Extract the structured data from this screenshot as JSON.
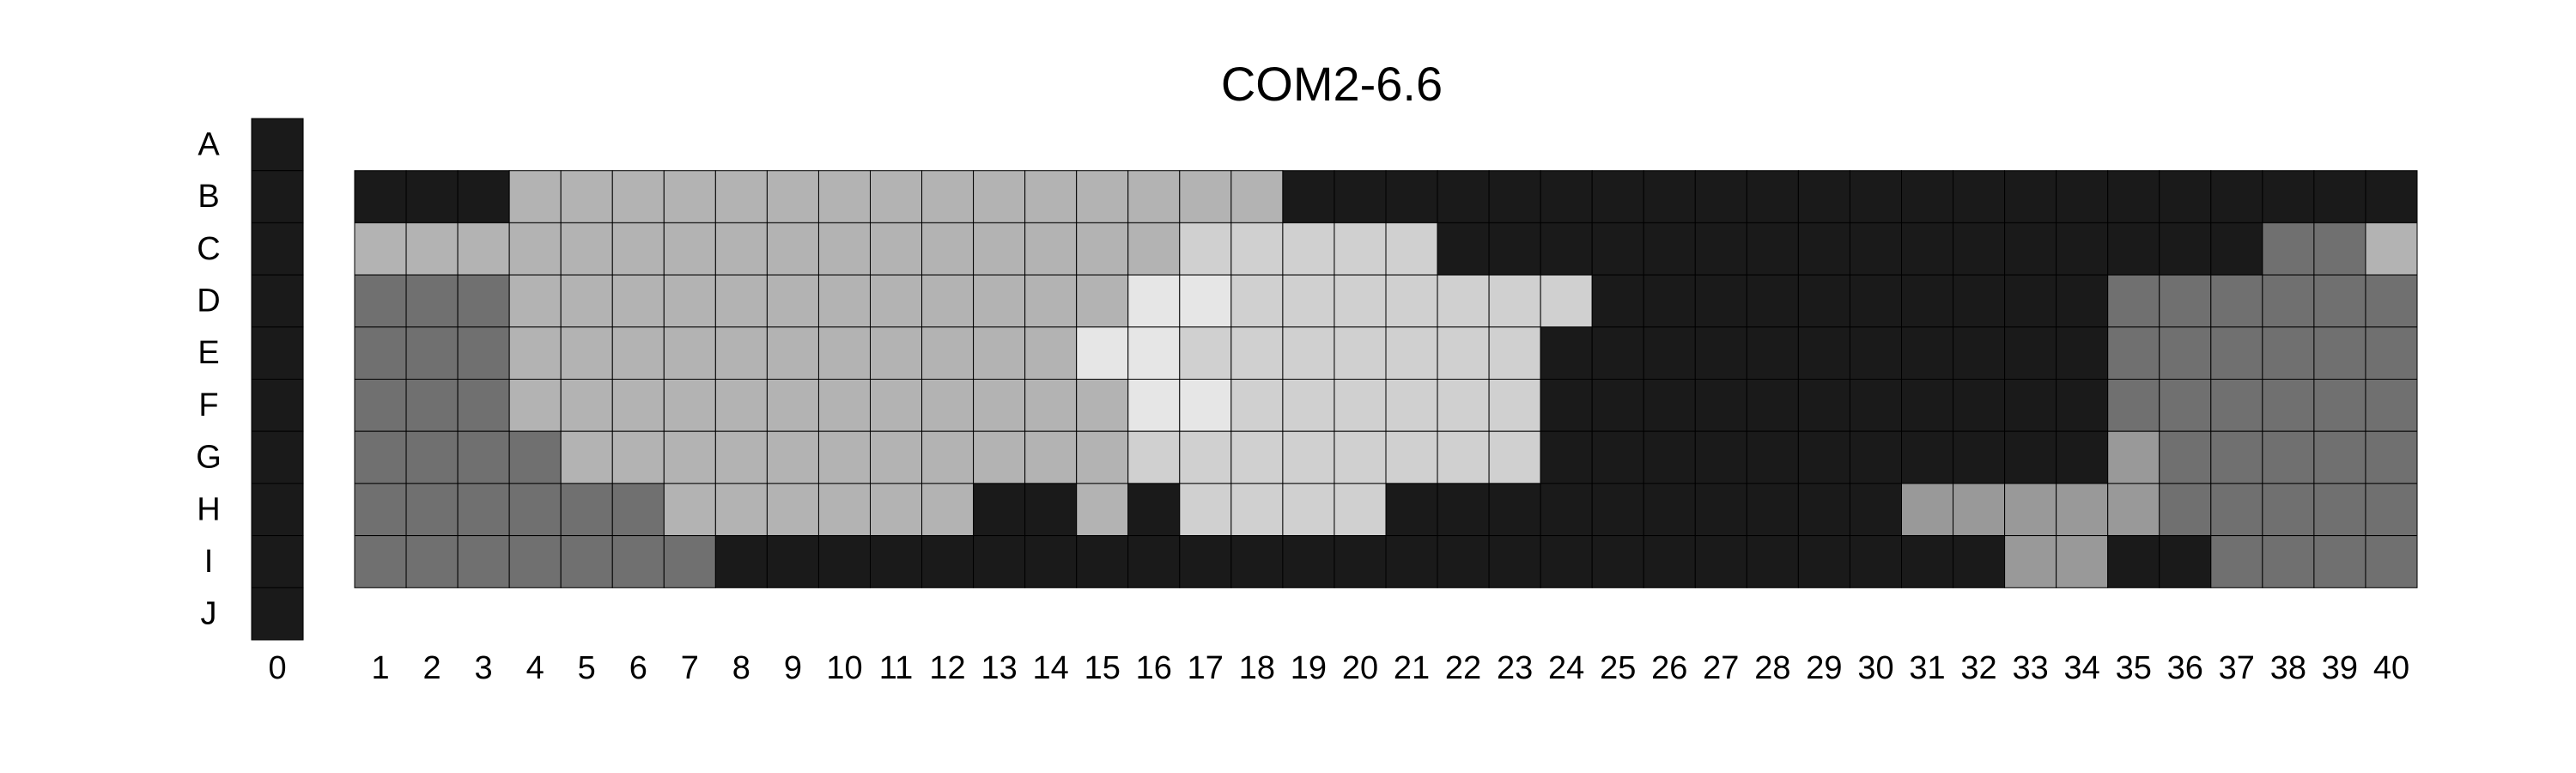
{
  "chart_data": {
    "type": "heatmap",
    "title": "COM2-6.6",
    "row_labels": [
      "A",
      "B",
      "C",
      "D",
      "E",
      "F",
      "G",
      "H",
      "I",
      "J"
    ],
    "column0": {
      "label": "0",
      "values": [
        0,
        0,
        0,
        0,
        0,
        0,
        0,
        0,
        0,
        0
      ]
    },
    "columns": [
      "1",
      "2",
      "3",
      "4",
      "5",
      "6",
      "7",
      "8",
      "9",
      "10",
      "11",
      "12",
      "13",
      "14",
      "15",
      "16",
      "17",
      "18",
      "19",
      "20",
      "21",
      "22",
      "23",
      "24",
      "25",
      "26",
      "27",
      "28",
      "29",
      "30",
      "31",
      "32",
      "33",
      "34",
      "35",
      "36",
      "37",
      "38",
      "39",
      "40"
    ],
    "rows": [
      "B",
      "C",
      "D",
      "E",
      "F",
      "G",
      "H",
      "I"
    ],
    "levels": [
      {
        "level": 0,
        "color": "#1a1a1a"
      },
      {
        "level": 1,
        "color": "#707070"
      },
      {
        "level": 2,
        "color": "#999999"
      },
      {
        "level": 3,
        "color": "#b3b3b3"
      },
      {
        "level": 4,
        "color": "#d0d0d0"
      },
      {
        "level": 5,
        "color": "#e6e6e6"
      }
    ],
    "values": [
      [
        0,
        0,
        0,
        3,
        3,
        3,
        3,
        3,
        3,
        3,
        3,
        3,
        3,
        3,
        3,
        3,
        3,
        3,
        0,
        0,
        0,
        0,
        0,
        0,
        0,
        0,
        0,
        0,
        0,
        0,
        0,
        0,
        0,
        0,
        0,
        0,
        0,
        0,
        0,
        0
      ],
      [
        3,
        3,
        3,
        3,
        3,
        3,
        3,
        3,
        3,
        3,
        3,
        3,
        3,
        3,
        3,
        3,
        4,
        4,
        4,
        4,
        4,
        0,
        0,
        0,
        0,
        0,
        0,
        0,
        0,
        0,
        0,
        0,
        0,
        0,
        0,
        0,
        0,
        1,
        1,
        3
      ],
      [
        1,
        1,
        1,
        3,
        3,
        3,
        3,
        3,
        3,
        3,
        3,
        3,
        3,
        3,
        3,
        5,
        5,
        4,
        4,
        4,
        4,
        4,
        4,
        4,
        0,
        0,
        0,
        0,
        0,
        0,
        0,
        0,
        0,
        0,
        1,
        1,
        1,
        1,
        1,
        1
      ],
      [
        1,
        1,
        1,
        3,
        3,
        3,
        3,
        3,
        3,
        3,
        3,
        3,
        3,
        3,
        5,
        5,
        4,
        4,
        4,
        4,
        4,
        4,
        4,
        0,
        0,
        0,
        0,
        0,
        0,
        0,
        0,
        0,
        0,
        0,
        1,
        1,
        1,
        1,
        1,
        1
      ],
      [
        1,
        1,
        1,
        3,
        3,
        3,
        3,
        3,
        3,
        3,
        3,
        3,
        3,
        3,
        3,
        5,
        5,
        4,
        4,
        4,
        4,
        4,
        4,
        0,
        0,
        0,
        0,
        0,
        0,
        0,
        0,
        0,
        0,
        0,
        1,
        1,
        1,
        1,
        1,
        1
      ],
      [
        1,
        1,
        1,
        1,
        3,
        3,
        3,
        3,
        3,
        3,
        3,
        3,
        3,
        3,
        3,
        4,
        4,
        4,
        4,
        4,
        4,
        4,
        4,
        0,
        0,
        0,
        0,
        0,
        0,
        0,
        0,
        0,
        0,
        0,
        2,
        1,
        1,
        1,
        1,
        1
      ],
      [
        1,
        1,
        1,
        1,
        1,
        1,
        3,
        3,
        3,
        3,
        3,
        3,
        0,
        0,
        3,
        0,
        4,
        4,
        4,
        4,
        0,
        0,
        0,
        0,
        0,
        0,
        0,
        0,
        0,
        0,
        2,
        2,
        2,
        2,
        2,
        1,
        1,
        1,
        1,
        1
      ],
      [
        1,
        1,
        1,
        1,
        1,
        1,
        1,
        0,
        0,
        0,
        0,
        0,
        0,
        0,
        0,
        0,
        0,
        0,
        0,
        0,
        0,
        0,
        0,
        0,
        0,
        0,
        0,
        0,
        0,
        0,
        0,
        0,
        2,
        2,
        0,
        0,
        1,
        1,
        1,
        1
      ]
    ]
  }
}
